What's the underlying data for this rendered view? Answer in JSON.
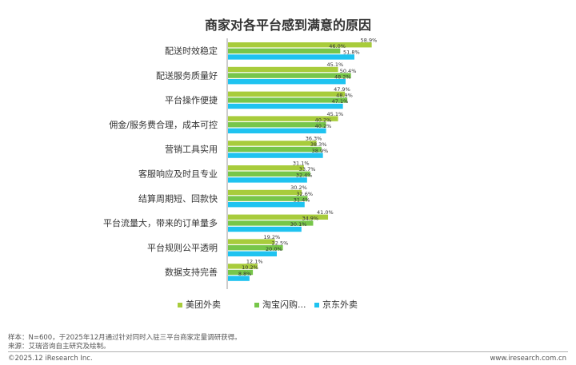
{
  "chart_data": {
    "type": "bar",
    "orientation": "horizontal",
    "title": "商家对各平台感到满意的原因",
    "categories": [
      "配送时效稳定",
      "配送服务质量好",
      "平台操作便捷",
      "佣金/服务费合理，成本可控",
      "营销工具实用",
      "客服响应及时且专业",
      "结算周期短、回款快",
      "平台流量大，带来的订单量多",
      "平台规则公平透明",
      "数据支持完善"
    ],
    "series": [
      {
        "name": "美团外卖",
        "color": "#a8cc3c",
        "values": [
          58.9,
          45.1,
          47.9,
          45.1,
          36.3,
          31.1,
          30.2,
          41.0,
          19.2,
          12.1
        ],
        "labels": [
          "58.9%",
          "45.1%",
          "47.9%",
          "45.1%",
          "36.3%",
          "31.1%",
          "30.2%",
          "41.0%",
          "19.2%",
          "12.1%"
        ]
      },
      {
        "name": "淘宝闪购...",
        "color": "#77c64a",
        "values": [
          46.0,
          50.4,
          48.9,
          40.2,
          38.3,
          33.7,
          32.6,
          34.9,
          22.5,
          10.2
        ],
        "labels": [
          "46.0%",
          "50.4%",
          "48.9%",
          "40.2%",
          "38.3%",
          "33.7%",
          "32.6%",
          "34.9%",
          "22.5%",
          "10.2%"
        ]
      },
      {
        "name": "京东外卖",
        "color": "#1fc3f0",
        "values": [
          51.8,
          48.2,
          47.1,
          40.2,
          38.9,
          32.4,
          31.4,
          30.1,
          20.0,
          8.8
        ],
        "labels": [
          "51.8%",
          "48.2%",
          "47.1%",
          "40.2%",
          "38.9%",
          "32.4%",
          "31.4%",
          "30.1%",
          "20.0%",
          "8.8%"
        ]
      }
    ],
    "legend_position": "bottom",
    "grid": false
  },
  "notes": {
    "sample": "样本：N=600，于2025年12月通过针对同时入驻三平台商家定量调研获得。",
    "source": "来源：艾瑞咨询自主研究及绘制。"
  },
  "footer": {
    "copyright": "©2025.12 iResearch Inc.",
    "website": "www.iresearch.com.cn"
  }
}
